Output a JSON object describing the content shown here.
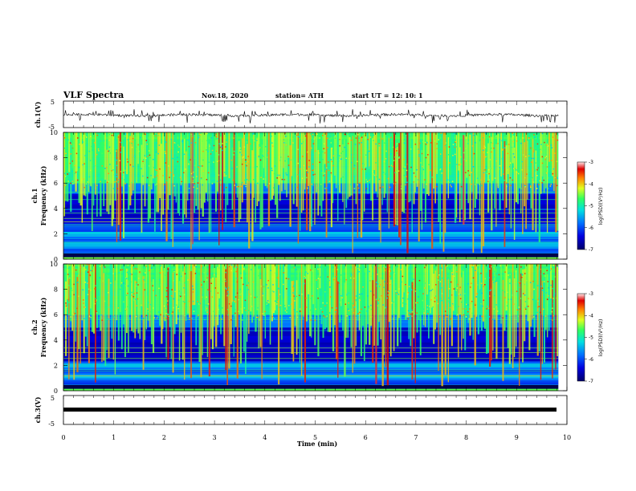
{
  "header": {
    "title": "VLF Spectra",
    "date": "Nov.18, 2020",
    "station": "station= ATH",
    "start": "start  UT =   12: 10: 1"
  },
  "chart_data": [
    {
      "type": "line",
      "panel": "ch1-waveform",
      "ylabel": "ch.1(V)",
      "ylim": [
        -5,
        5
      ],
      "yticks": [
        "5",
        "-5"
      ],
      "x_range_min": [
        0,
        9.83
      ],
      "baseline_v": -0.3,
      "description_values": "noisy waveform around -0.3 V with spikes up to about +1.5 V and down to about -3 V"
    },
    {
      "type": "heatmap",
      "panel": "ch1-spectrogram",
      "ylabel_line1": "ch.1",
      "ylabel_line2": "Frequency  (kHz)",
      "ylim": [
        0,
        10
      ],
      "yticks": [
        "0",
        "2",
        "4",
        "6",
        "8",
        "10"
      ],
      "colorbar": {
        "label": "log(PSD)(V²/Hz)",
        "range": [
          -7,
          -3
        ],
        "ticks": [
          "-3",
          "-4",
          "-5",
          "-6",
          "-7"
        ]
      },
      "quiet_band_khz": [
        2.8,
        5.2
      ],
      "active_band_khz": [
        5.5,
        10
      ]
    },
    {
      "type": "heatmap",
      "panel": "ch2-spectrogram",
      "ylabel_line1": "ch.2",
      "ylabel_line2": "Frequency  (kHz)",
      "ylim": [
        0,
        10
      ],
      "yticks": [
        "0",
        "2",
        "4",
        "6",
        "8",
        "10"
      ],
      "colorbar": {
        "label": "log(PSD)(V²/Hz)",
        "range": [
          -7,
          -3
        ],
        "ticks": [
          "-3",
          "-4",
          "-5",
          "-6",
          "-7"
        ]
      },
      "quiet_band_khz": [
        2.3,
        5.0
      ],
      "active_band_khz": [
        5.5,
        10
      ]
    },
    {
      "type": "line",
      "panel": "ch3-waveform",
      "ylabel": "ch.3(V)",
      "ylim": [
        -5,
        5
      ],
      "yticks": [
        "5",
        "-5"
      ],
      "constant_v": 0,
      "x_range_min": [
        0,
        9.83
      ]
    }
  ],
  "xaxis": {
    "label": "Time  (min)",
    "ticks": [
      "0",
      "1",
      "2",
      "3",
      "4",
      "5",
      "6",
      "7",
      "8",
      "9",
      "10"
    ],
    "xlim": [
      0,
      10
    ]
  }
}
